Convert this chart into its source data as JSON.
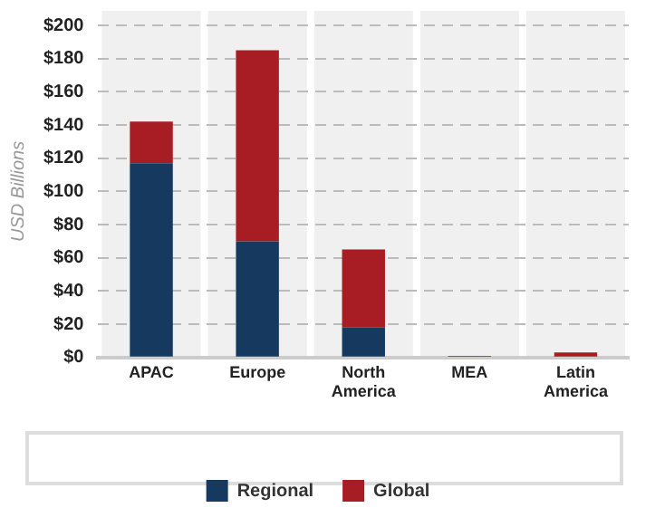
{
  "chart_data": {
    "type": "bar",
    "stacked": true,
    "ylabel": "USD Billions",
    "categories": [
      "APAC",
      "Europe",
      "North America",
      "MEA",
      "Latin America"
    ],
    "series": [
      {
        "name": "Regional",
        "color": "#163a5f",
        "values": [
          117,
          70,
          18,
          0,
          0
        ]
      },
      {
        "name": "Global",
        "color": "#a81c24",
        "values": [
          25,
          115,
          47,
          1,
          3
        ]
      }
    ],
    "ylim": [
      0,
      200
    ],
    "yticks": [
      {
        "value": 0,
        "label": "$0"
      },
      {
        "value": 20,
        "label": "$20"
      },
      {
        "value": 40,
        "label": "$40"
      },
      {
        "value": 60,
        "label": "$60"
      },
      {
        "value": 80,
        "label": "$80"
      },
      {
        "value": 100,
        "label": "$100"
      },
      {
        "value": 120,
        "label": "$120"
      },
      {
        "value": 140,
        "label": "$140"
      },
      {
        "value": 160,
        "label": "$160"
      },
      {
        "value": 180,
        "label": "$180"
      },
      {
        "value": 200,
        "label": "$200"
      }
    ],
    "grid": "y",
    "legend": "bottom"
  }
}
